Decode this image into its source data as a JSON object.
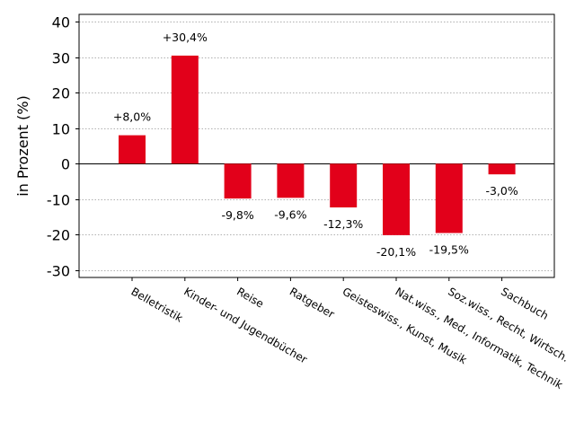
{
  "chart_data": {
    "type": "bar",
    "ylabel": "in Prozent (%)",
    "ylim": [
      -32,
      42
    ],
    "yticks": [
      -30,
      -20,
      -10,
      0,
      10,
      20,
      30,
      40
    ],
    "grid": "horizontal, dotted",
    "bar_color": "#e2001a",
    "categories": [
      "Belletristik",
      "Kinder- und Jugendbücher",
      "Reise",
      "Ratgeber",
      "Geisteswiss., Kunst, Musik",
      "Nat.wiss., Med., Informatik, Technik",
      "Soz.wiss., Recht, Wirtsch.",
      "Sachbuch"
    ],
    "values": [
      8.0,
      30.4,
      -9.8,
      -9.6,
      -12.3,
      -20.1,
      -19.5,
      -3.0
    ],
    "data_labels": [
      "+8,0%",
      "+30,4%",
      "-9,8%",
      "-9,6%",
      "-12,3%",
      "-20,1%",
      "-19,5%",
      "-3,0%"
    ]
  }
}
